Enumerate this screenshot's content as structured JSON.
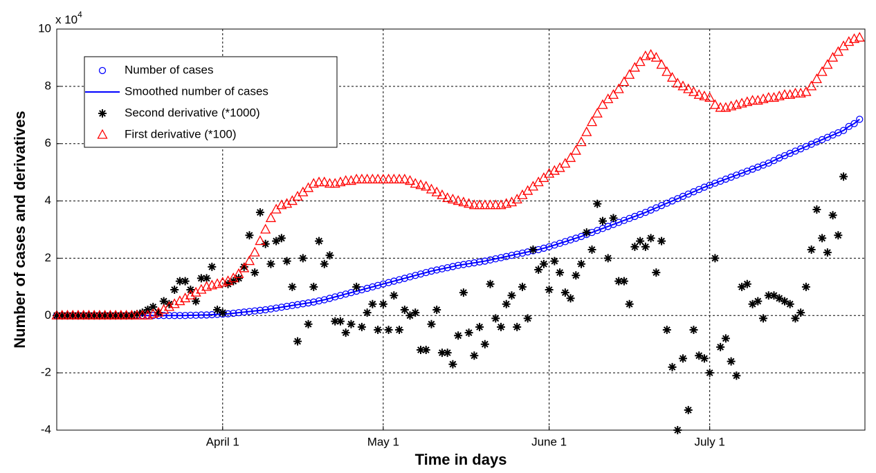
{
  "chart_data": {
    "type": "scatter",
    "x_label": "Time in days",
    "y_label": "Number of cases and derivatives",
    "y_scale_label": "x 10",
    "y_scale_exponent": "4",
    "xlim": [
      0,
      151
    ],
    "ylim": [
      -4,
      10
    ],
    "xticks": [
      {
        "value": 31,
        "label": "April 1"
      },
      {
        "value": 61,
        "label": "May 1"
      },
      {
        "value": 92,
        "label": "June 1"
      },
      {
        "value": 122,
        "label": "July 1"
      }
    ],
    "yticks": [
      -4,
      -2,
      0,
      2,
      4,
      6,
      8,
      10
    ],
    "grid": true,
    "legend": "upper left",
    "x": [
      0,
      1,
      2,
      3,
      4,
      5,
      6,
      7,
      8,
      9,
      10,
      11,
      12,
      13,
      14,
      15,
      16,
      17,
      18,
      19,
      20,
      21,
      22,
      23,
      24,
      25,
      26,
      27,
      28,
      29,
      30,
      31,
      32,
      33,
      34,
      35,
      36,
      37,
      38,
      39,
      40,
      41,
      42,
      43,
      44,
      45,
      46,
      47,
      48,
      49,
      50,
      51,
      52,
      53,
      54,
      55,
      56,
      57,
      58,
      59,
      60,
      61,
      62,
      63,
      64,
      65,
      66,
      67,
      68,
      69,
      70,
      71,
      72,
      73,
      74,
      75,
      76,
      77,
      78,
      79,
      80,
      81,
      82,
      83,
      84,
      85,
      86,
      87,
      88,
      89,
      90,
      91,
      92,
      93,
      94,
      95,
      96,
      97,
      98,
      99,
      100,
      101,
      102,
      103,
      104,
      105,
      106,
      107,
      108,
      109,
      110,
      111,
      112,
      113,
      114,
      115,
      116,
      117,
      118,
      119,
      120,
      121,
      122,
      123,
      124,
      125,
      126,
      127,
      128,
      129,
      130,
      131,
      132,
      133,
      134,
      135,
      136,
      137,
      138,
      139,
      140,
      141,
      142,
      143,
      144,
      145,
      146,
      147,
      148,
      149,
      150
    ],
    "series": [
      {
        "name": "Number of cases",
        "color": "#0000ff",
        "marker": "circle",
        "values": [
          0,
          0,
          0,
          0,
          0,
          0,
          0,
          0,
          0,
          0,
          0,
          0,
          0,
          0,
          0,
          0,
          0,
          0,
          0,
          0,
          0,
          0,
          0,
          0,
          0,
          0.01,
          0.01,
          0.02,
          0.02,
          0.03,
          0.04,
          0.05,
          0.06,
          0.08,
          0.1,
          0.12,
          0.14,
          0.16,
          0.18,
          0.2,
          0.23,
          0.26,
          0.29,
          0.32,
          0.35,
          0.38,
          0.41,
          0.44,
          0.47,
          0.51,
          0.55,
          0.6,
          0.65,
          0.7,
          0.75,
          0.8,
          0.85,
          0.9,
          0.95,
          1.0,
          1.05,
          1.1,
          1.15,
          1.2,
          1.25,
          1.3,
          1.35,
          1.4,
          1.45,
          1.5,
          1.55,
          1.59,
          1.63,
          1.67,
          1.71,
          1.75,
          1.78,
          1.81,
          1.84,
          1.87,
          1.9,
          1.94,
          1.98,
          2.02,
          2.06,
          2.1,
          2.14,
          2.18,
          2.22,
          2.26,
          2.3,
          2.35,
          2.4,
          2.46,
          2.52,
          2.58,
          2.64,
          2.7,
          2.76,
          2.83,
          2.9,
          2.97,
          3.04,
          3.11,
          3.18,
          3.25,
          3.32,
          3.39,
          3.46,
          3.53,
          3.6,
          3.68,
          3.76,
          3.84,
          3.92,
          4.0,
          4.08,
          4.16,
          4.24,
          4.32,
          4.4,
          4.48,
          4.55,
          4.62,
          4.69,
          4.76,
          4.83,
          4.9,
          4.97,
          5.04,
          5.11,
          5.18,
          5.25,
          5.32,
          5.41,
          5.5,
          5.58,
          5.66,
          5.74,
          5.82,
          5.9,
          5.98,
          6.06,
          6.14,
          6.22,
          6.3,
          6.38,
          6.46,
          6.6,
          6.7,
          6.85
        ]
      },
      {
        "name": "Smoothed number of cases",
        "color": "#0000ff",
        "marker": "line",
        "values": [
          0,
          0,
          0,
          0,
          0,
          0,
          0,
          0,
          0,
          0,
          0,
          0,
          0,
          0,
          0,
          0,
          0,
          0,
          0,
          0,
          0,
          0,
          0,
          0,
          0,
          0.01,
          0.01,
          0.02,
          0.02,
          0.03,
          0.04,
          0.05,
          0.06,
          0.08,
          0.1,
          0.12,
          0.14,
          0.16,
          0.18,
          0.2,
          0.23,
          0.26,
          0.29,
          0.32,
          0.35,
          0.38,
          0.41,
          0.44,
          0.47,
          0.51,
          0.55,
          0.6,
          0.65,
          0.7,
          0.75,
          0.8,
          0.85,
          0.9,
          0.95,
          1.0,
          1.05,
          1.1,
          1.15,
          1.2,
          1.25,
          1.3,
          1.35,
          1.4,
          1.45,
          1.5,
          1.55,
          1.59,
          1.63,
          1.67,
          1.71,
          1.75,
          1.78,
          1.81,
          1.84,
          1.87,
          1.9,
          1.94,
          1.98,
          2.02,
          2.06,
          2.1,
          2.14,
          2.18,
          2.22,
          2.26,
          2.3,
          2.35,
          2.4,
          2.46,
          2.52,
          2.58,
          2.64,
          2.7,
          2.76,
          2.83,
          2.9,
          2.97,
          3.04,
          3.11,
          3.18,
          3.25,
          3.32,
          3.39,
          3.46,
          3.53,
          3.6,
          3.68,
          3.76,
          3.84,
          3.92,
          4.0,
          4.08,
          4.16,
          4.24,
          4.32,
          4.4,
          4.48,
          4.55,
          4.62,
          4.69,
          4.76,
          4.83,
          4.9,
          4.97,
          5.04,
          5.11,
          5.18,
          5.25,
          5.32,
          5.41,
          5.5,
          5.58,
          5.66,
          5.74,
          5.82,
          5.9,
          5.98,
          6.06,
          6.14,
          6.22,
          6.3,
          6.38,
          6.46,
          6.6,
          6.7,
          6.85
        ]
      },
      {
        "name": "Second derivative (*1000)",
        "color": "#000000",
        "marker": "star",
        "values": [
          0,
          0,
          0,
          0,
          0,
          0,
          0,
          0,
          0,
          0,
          0,
          0,
          0,
          0,
          0,
          0.05,
          0.1,
          0.2,
          0.3,
          0.1,
          0.5,
          0.4,
          0.9,
          1.2,
          1.2,
          0.9,
          0.5,
          1.3,
          1.3,
          1.7,
          0.2,
          0.1,
          1.1,
          1.2,
          1.3,
          1.7,
          2.8,
          1.5,
          3.6,
          2.5,
          1.8,
          2.6,
          2.7,
          1.9,
          1.0,
          -0.9,
          2.0,
          -0.3,
          1.0,
          2.6,
          1.8,
          2.1,
          -0.2,
          -0.2,
          -0.6,
          -0.3,
          1.0,
          -0.4,
          0.1,
          0.4,
          -0.5,
          0.4,
          -0.5,
          0.7,
          -0.5,
          0.2,
          0.0,
          0.1,
          -1.2,
          -1.2,
          -0.3,
          0.2,
          -1.3,
          -1.3,
          -1.7,
          -0.7,
          0.8,
          -0.6,
          -1.4,
          -0.4,
          -1.0,
          1.1,
          -0.1,
          -0.4,
          0.4,
          0.7,
          -0.4,
          1.0,
          -0.1,
          2.3,
          1.6,
          1.8,
          0.9,
          1.9,
          1.5,
          0.8,
          0.6,
          1.4,
          1.8,
          2.9,
          2.3,
          3.9,
          3.3,
          2.0,
          3.4,
          1.2,
          1.2,
          0.4,
          2.4,
          2.6,
          2.4,
          2.7,
          1.5,
          2.6,
          -0.5,
          -1.8,
          -4.0,
          -1.5,
          -3.3,
          -0.5,
          -1.4,
          -1.5,
          -2.0,
          2.0,
          -1.1,
          -0.8,
          -1.6,
          -2.1,
          1.0,
          1.1,
          0.4,
          0.5,
          -0.1,
          0.7,
          0.7,
          0.6,
          0.5,
          0.4,
          -0.1,
          0.1,
          1.0,
          2.3,
          3.7,
          2.7,
          2.2,
          3.5,
          2.8,
          4.85,
          null,
          null,
          null
        ]
      },
      {
        "name": "First derivative (*100)",
        "color": "#ff0000",
        "marker": "triangle",
        "values": [
          0,
          0,
          0,
          0,
          0,
          0,
          0,
          0,
          0,
          0,
          0,
          0,
          0,
          0,
          0,
          0,
          0,
          0,
          0.05,
          0.1,
          0.2,
          0.3,
          0.4,
          0.5,
          0.6,
          0.7,
          0.8,
          0.9,
          1.0,
          1.05,
          1.1,
          1.15,
          1.2,
          1.3,
          1.45,
          1.65,
          1.9,
          2.2,
          2.6,
          3.0,
          3.4,
          3.7,
          3.85,
          3.9,
          4.0,
          4.15,
          4.3,
          4.45,
          4.6,
          4.65,
          4.65,
          4.6,
          4.6,
          4.65,
          4.7,
          4.7,
          4.75,
          4.75,
          4.75,
          4.75,
          4.75,
          4.75,
          4.75,
          4.75,
          4.75,
          4.75,
          4.7,
          4.6,
          4.55,
          4.5,
          4.4,
          4.3,
          4.2,
          4.1,
          4.05,
          4.0,
          3.95,
          3.9,
          3.85,
          3.85,
          3.85,
          3.85,
          3.85,
          3.85,
          3.9,
          3.95,
          4.05,
          4.2,
          4.35,
          4.5,
          4.65,
          4.8,
          4.95,
          5.05,
          5.15,
          5.3,
          5.5,
          5.75,
          6.05,
          6.4,
          6.75,
          7.05,
          7.35,
          7.55,
          7.7,
          7.9,
          8.15,
          8.4,
          8.65,
          8.85,
          9.05,
          9.1,
          9.0,
          8.75,
          8.5,
          8.3,
          8.1,
          8.0,
          7.9,
          7.8,
          7.7,
          7.65,
          7.6,
          7.35,
          7.25,
          7.25,
          7.3,
          7.35,
          7.4,
          7.45,
          7.5,
          7.5,
          7.55,
          7.6,
          7.6,
          7.65,
          7.7,
          7.7,
          7.75,
          7.75,
          7.8,
          8.0,
          8.25,
          8.5,
          8.75,
          9.0,
          9.2,
          9.4,
          9.55,
          9.65,
          9.7
        ]
      }
    ]
  }
}
